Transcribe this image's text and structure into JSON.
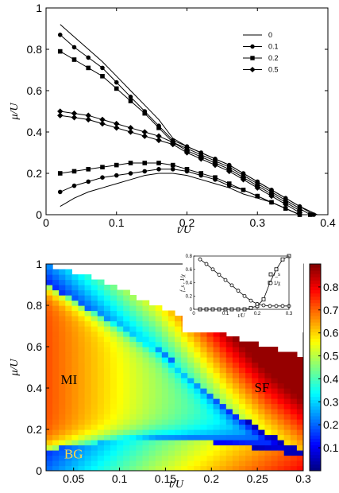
{
  "chart_data": [
    {
      "type": "line",
      "xlabel": "t/U",
      "ylabel": "μ/U",
      "xlim": [
        0,
        0.4
      ],
      "ylim": [
        0,
        1
      ],
      "xticks": [
        "0",
        "0.1",
        "0.2",
        "0.3",
        "0.4"
      ],
      "yticks": [
        "0",
        "0.2",
        "0.4",
        "0.6",
        "0.8",
        "1"
      ],
      "legend_position": "top-right",
      "legend": [
        {
          "label": "0",
          "marker": "none"
        },
        {
          "label": "0.1",
          "marker": "circle"
        },
        {
          "label": "0.2",
          "marker": "square"
        },
        {
          "label": "0.5",
          "marker": "diamond"
        }
      ],
      "series": [
        {
          "name": "0",
          "marker": "none",
          "branch": "upper",
          "x": [
            0.02,
            0.04,
            0.06,
            0.08,
            0.1,
            0.12,
            0.14,
            0.16,
            0.18,
            0.2,
            0.22,
            0.24,
            0.26,
            0.28,
            0.3,
            0.32,
            0.34,
            0.36,
            0.385
          ],
          "y": [
            0.92,
            0.86,
            0.8,
            0.74,
            0.67,
            0.6,
            0.53,
            0.46,
            0.37,
            0.33,
            0.3,
            0.27,
            0.24,
            0.2,
            0.16,
            0.12,
            0.08,
            0.04,
            0.0
          ]
        },
        {
          "name": "0",
          "marker": "none",
          "branch": "lower",
          "x": [
            0.02,
            0.04,
            0.06,
            0.08,
            0.1,
            0.12,
            0.14,
            0.16,
            0.18,
            0.2,
            0.22,
            0.24,
            0.26,
            0.28,
            0.3,
            0.32,
            0.34,
            0.36
          ],
          "y": [
            0.04,
            0.08,
            0.11,
            0.13,
            0.15,
            0.17,
            0.19,
            0.2,
            0.2,
            0.19,
            0.17,
            0.15,
            0.13,
            0.1,
            0.08,
            0.06,
            0.03,
            0.0
          ]
        },
        {
          "name": "0.1",
          "marker": "circle",
          "branch": "upper",
          "x": [
            0.02,
            0.04,
            0.06,
            0.08,
            0.1,
            0.12,
            0.14,
            0.16,
            0.18,
            0.2,
            0.22,
            0.24,
            0.26,
            0.28,
            0.3,
            0.32,
            0.34,
            0.36,
            0.38
          ],
          "y": [
            0.87,
            0.81,
            0.76,
            0.71,
            0.64,
            0.57,
            0.5,
            0.43,
            0.36,
            0.33,
            0.3,
            0.27,
            0.24,
            0.2,
            0.16,
            0.12,
            0.08,
            0.04,
            0.0
          ]
        },
        {
          "name": "0.1",
          "marker": "circle",
          "branch": "lower",
          "x": [
            0.02,
            0.04,
            0.06,
            0.08,
            0.1,
            0.12,
            0.14,
            0.16,
            0.18,
            0.2,
            0.22,
            0.24,
            0.26,
            0.28,
            0.3,
            0.32,
            0.34,
            0.36
          ],
          "y": [
            0.11,
            0.14,
            0.16,
            0.18,
            0.19,
            0.2,
            0.21,
            0.22,
            0.22,
            0.21,
            0.19,
            0.17,
            0.14,
            0.12,
            0.09,
            0.06,
            0.03,
            0.0
          ]
        },
        {
          "name": "0.2",
          "marker": "square",
          "branch": "upper",
          "x": [
            0.02,
            0.04,
            0.06,
            0.08,
            0.1,
            0.12,
            0.14,
            0.16,
            0.18,
            0.2,
            0.22,
            0.24,
            0.26,
            0.28,
            0.3,
            0.32,
            0.34,
            0.36,
            0.375
          ],
          "y": [
            0.79,
            0.75,
            0.71,
            0.67,
            0.61,
            0.55,
            0.49,
            0.42,
            0.35,
            0.32,
            0.29,
            0.26,
            0.23,
            0.19,
            0.15,
            0.11,
            0.07,
            0.03,
            0.0
          ]
        },
        {
          "name": "0.2",
          "marker": "square",
          "branch": "lower",
          "x": [
            0.02,
            0.04,
            0.06,
            0.08,
            0.1,
            0.12,
            0.14,
            0.16,
            0.18,
            0.2,
            0.22,
            0.24,
            0.26,
            0.28,
            0.3,
            0.32,
            0.34,
            0.36
          ],
          "y": [
            0.2,
            0.21,
            0.22,
            0.23,
            0.24,
            0.25,
            0.25,
            0.25,
            0.24,
            0.22,
            0.2,
            0.18,
            0.15,
            0.12,
            0.09,
            0.06,
            0.03,
            0.0
          ]
        },
        {
          "name": "0.5",
          "marker": "diamond",
          "branch": "upper",
          "x": [
            0.02,
            0.04,
            0.06,
            0.08,
            0.1,
            0.12,
            0.14,
            0.16,
            0.18,
            0.2,
            0.22,
            0.24,
            0.26,
            0.28,
            0.3,
            0.32,
            0.34,
            0.36
          ],
          "y": [
            0.5,
            0.49,
            0.48,
            0.46,
            0.44,
            0.42,
            0.4,
            0.38,
            0.35,
            0.31,
            0.28,
            0.25,
            0.22,
            0.18,
            0.14,
            0.1,
            0.06,
            0.02
          ]
        },
        {
          "name": "0.5",
          "marker": "diamond",
          "branch": "lower",
          "x": [
            0.02,
            0.04,
            0.06,
            0.08,
            0.1,
            0.12,
            0.14,
            0.16,
            0.18,
            0.2,
            0.22,
            0.24,
            0.26,
            0.28,
            0.3,
            0.32,
            0.34,
            0.36
          ],
          "y": [
            0.48,
            0.47,
            0.46,
            0.44,
            0.42,
            0.4,
            0.38,
            0.36,
            0.34,
            0.3,
            0.27,
            0.24,
            0.21,
            0.17,
            0.13,
            0.09,
            0.05,
            0.01
          ]
        }
      ]
    },
    {
      "type": "heatmap",
      "xlabel": "t/U",
      "ylabel": "μ/U",
      "xlim": [
        0.02,
        0.3
      ],
      "ylim": [
        0,
        1
      ],
      "xticks": [
        "0.05",
        "0.1",
        "0.15",
        "0.2",
        "0.25",
        "0.3"
      ],
      "yticks": [
        "0",
        "0.2",
        "0.4",
        "0.6",
        "0.8",
        "1"
      ],
      "colorbar_ticks": [
        "0.1",
        "0.2",
        "0.3",
        "0.4",
        "0.5",
        "0.6",
        "0.7",
        "0.8"
      ],
      "colorbar_range": [
        0,
        0.9
      ],
      "colormap": "jet",
      "annotations": [
        {
          "text": "MI",
          "x": 0.045,
          "y": 0.42
        },
        {
          "text": "SF",
          "x": 0.255,
          "y": 0.38
        },
        {
          "text": "BG",
          "x": 0.05,
          "y": 0.06
        }
      ],
      "boundaries": {
        "upper": {
          "x": [
            0.02,
            0.06,
            0.1,
            0.14,
            0.18,
            0.22,
            0.26,
            0.3
          ],
          "y": [
            0.9,
            0.8,
            0.7,
            0.6,
            0.45,
            0.3,
            0.18,
            0.1
          ]
        },
        "lower": {
          "x": [
            0.02,
            0.06,
            0.1,
            0.14,
            0.18,
            0.22,
            0.26,
            0.3
          ],
          "y": [
            0.1,
            0.13,
            0.15,
            0.16,
            0.15,
            0.13,
            0.1,
            0.07
          ]
        },
        "top_edge": {
          "x": [
            0.02,
            0.06,
            0.1,
            0.14,
            0.18,
            0.22,
            0.26,
            0.3
          ],
          "y": [
            1.0,
            0.95,
            0.88,
            0.8,
            0.72,
            0.65,
            0.6,
            0.55
          ]
        }
      },
      "inset": {
        "type": "line",
        "xlabel": "t/U",
        "ylabel": "f_s , 1/χ",
        "xlim": [
          0,
          0.3
        ],
        "ylim": [
          0,
          0.8
        ],
        "xticks": [
          "0",
          "0.1",
          "0.2",
          "0.3"
        ],
        "yticks": [
          "0",
          "0.2",
          "0.4",
          "0.6",
          "0.8"
        ],
        "legend": [
          "f_s",
          "1/χ"
        ],
        "series": [
          {
            "name": "f_s",
            "marker": "square",
            "x": [
              0.02,
              0.04,
              0.06,
              0.08,
              0.1,
              0.12,
              0.14,
              0.16,
              0.18,
              0.2,
              0.22,
              0.24,
              0.26,
              0.28,
              0.3
            ],
            "y": [
              0,
              0,
              0,
              0,
              0,
              0,
              0,
              0,
              0.02,
              0.05,
              0.15,
              0.4,
              0.6,
              0.75,
              0.8
            ]
          },
          {
            "name": "1/χ",
            "marker": "circle",
            "x": [
              0.02,
              0.04,
              0.06,
              0.08,
              0.1,
              0.12,
              0.14,
              0.16,
              0.18,
              0.2,
              0.22,
              0.24,
              0.26,
              0.28,
              0.3
            ],
            "y": [
              0.75,
              0.68,
              0.6,
              0.52,
              0.44,
              0.36,
              0.28,
              0.2,
              0.13,
              0.08,
              0.06,
              0.05,
              0.05,
              0.05,
              0.05
            ]
          }
        ]
      }
    }
  ]
}
